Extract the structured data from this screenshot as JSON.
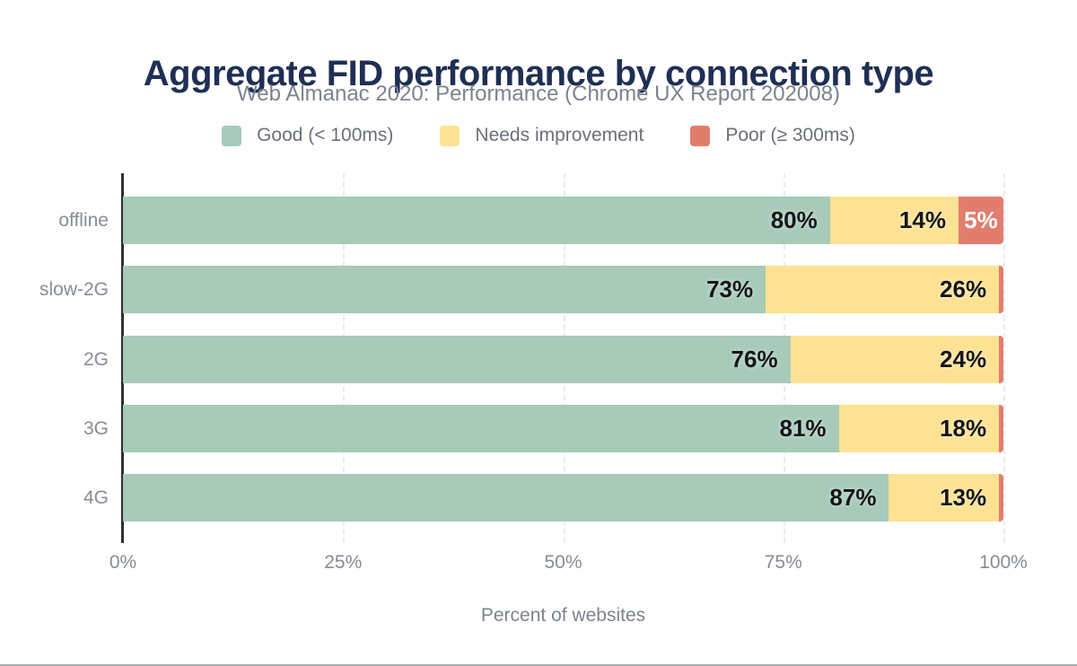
{
  "chart_data": {
    "type": "bar",
    "orientation": "horizontal",
    "stacked": true,
    "title": "Aggregate FID performance by connection type",
    "subtitle": "Web Almanac 2020: Performance (Chrome UX Report 202008)",
    "xlabel": "Percent of websites",
    "xlim": [
      0,
      100
    ],
    "x_tick_labels": [
      "0%",
      "25%",
      "50%",
      "75%",
      "100%"
    ],
    "x_tick_positions": [
      0,
      25,
      50,
      75,
      100
    ],
    "grid": {
      "style": "vertical-dashed",
      "positions": [
        25,
        50,
        75,
        100
      ]
    },
    "legend_position": "top-center",
    "categories": [
      "offline",
      "slow-2G",
      "2G",
      "3G",
      "4G"
    ],
    "series": [
      {
        "name": "Good (< 100ms)",
        "color": "#a7cab9",
        "values": [
          80,
          73,
          76,
          81,
          87
        ]
      },
      {
        "name": "Needs improvement",
        "color": "#fde293",
        "values": [
          14,
          26,
          24,
          18,
          13
        ]
      },
      {
        "name": "Poor (≥ 300ms)",
        "color": "#e27d6e",
        "values": [
          5,
          1,
          1,
          1,
          1
        ]
      }
    ],
    "bar_value_labels": [
      [
        "80%",
        "14%",
        "5%"
      ],
      [
        "73%",
        "26%",
        ""
      ],
      [
        "76%",
        "24%",
        ""
      ],
      [
        "81%",
        "18%",
        ""
      ],
      [
        "87%",
        "13%",
        ""
      ]
    ],
    "render_widths": [
      [
        80.3,
        14.6,
        5.1
      ],
      [
        73.0,
        26.5,
        0.5
      ],
      [
        75.8,
        23.7,
        0.5
      ],
      [
        81.3,
        18.2,
        0.5
      ],
      [
        87.0,
        12.5,
        0.5
      ]
    ]
  },
  "colors": {
    "title": "#1f2f55",
    "subtitle": "#7d838d",
    "legend_text": "#6b7078",
    "axis_line": "#2d3036",
    "gridline": "#e9ebee",
    "tick_text": "#878c95",
    "value_label": "#15161a",
    "poor_value_label": "#ffffff",
    "page_bottom_border": "#a9adb2"
  }
}
